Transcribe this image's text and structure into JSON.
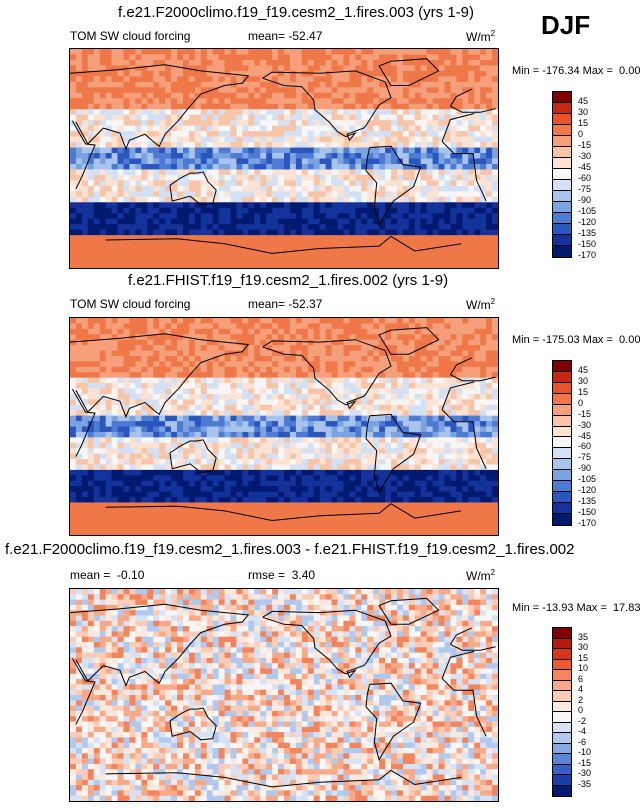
{
  "season": "DJF",
  "units_base": "W/m",
  "units_exp": "2",
  "chart_data": [
    {
      "type": "heatmap",
      "title": "f.e21.F2000climo.f19_f19.cesm2_1.fires.003 (yrs 1-9)",
      "variable": "TOM SW cloud forcing",
      "mean_label": "mean=",
      "mean": "-52.47",
      "min_label": "Min =",
      "min": "-176.34",
      "max_label": "Max =",
      "max": "0.00",
      "colorbar_levels": [
        "45",
        "30",
        "15",
        "0",
        "-15",
        "-30",
        "-45",
        "-60",
        "-75",
        "-90",
        "-105",
        "-120",
        "-135",
        "-150",
        "-170"
      ],
      "colorbar_colors": [
        "#7f0000",
        "#c42a12",
        "#e8532c",
        "#f07848",
        "#f5a07a",
        "#f9c5a8",
        "#fbe3d4",
        "#f6f6f6",
        "#d4e1f4",
        "#a9c4ec",
        "#7aa3e0",
        "#4d7bd4",
        "#2a56c0",
        "#13329b",
        "#001a70"
      ]
    },
    {
      "type": "heatmap",
      "title": "f.e21.FHIST.f19_f19.cesm2_1.fires.002 (yrs 1-9)",
      "variable": "TOM SW cloud forcing",
      "mean_label": "mean=",
      "mean": "-52.37",
      "min_label": "Min =",
      "min": "-175.03",
      "max_label": "Max =",
      "max": "0.00",
      "colorbar_levels": [
        "45",
        "30",
        "15",
        "0",
        "-15",
        "-30",
        "-45",
        "-60",
        "-75",
        "-90",
        "-105",
        "-120",
        "-135",
        "-150",
        "-170"
      ],
      "colorbar_colors": [
        "#7f0000",
        "#c42a12",
        "#e8532c",
        "#f07848",
        "#f5a07a",
        "#f9c5a8",
        "#fbe3d4",
        "#f6f6f6",
        "#d4e1f4",
        "#a9c4ec",
        "#7aa3e0",
        "#4d7bd4",
        "#2a56c0",
        "#13329b",
        "#001a70"
      ]
    },
    {
      "type": "heatmap",
      "title": "f.e21.F2000climo.f19_f19.cesm2_1.fires.003 - f.e21.FHIST.f19_f19.cesm2_1.fires.002",
      "mean_label": "mean =",
      "mean": "-0.10",
      "rmse_label": "rmse =",
      "rmse": "3.40",
      "min_label": "Min =",
      "min": "-13.93",
      "max_label": "Max =",
      "max": "17.83",
      "colorbar_levels": [
        "35",
        "30",
        "15",
        "10",
        "6",
        "4",
        "2",
        "0",
        "-2",
        "-4",
        "-6",
        "-10",
        "-15",
        "-30",
        "-35"
      ],
      "colorbar_colors": [
        "#7f0000",
        "#b51a0e",
        "#d8361c",
        "#ee5a34",
        "#f4845c",
        "#f8a988",
        "#fbcdb7",
        "#fbe9df",
        "#f6f6f6",
        "#d7e3f5",
        "#b1c9ef",
        "#86aae4",
        "#5a86d7",
        "#3560c6",
        "#1a3da8",
        "#001a70"
      ]
    }
  ]
}
